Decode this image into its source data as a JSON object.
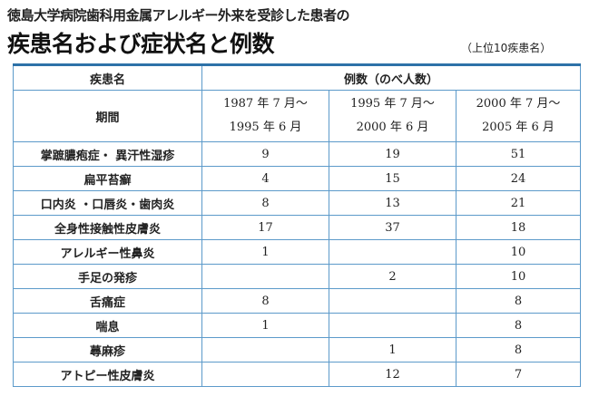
{
  "subtitle": "徳島大学病院歯科用金属アレルギー外来を受診した患者の",
  "title": "疾患名および症状名と例数",
  "note": "（上位10疾患名）",
  "table": {
    "header_disease": "疾患名",
    "header_cases": "例数（のべ人数）",
    "period_label": "期間",
    "periods": [
      {
        "line1": "1987 年 7 月～",
        "line2": "1995 年 6 月"
      },
      {
        "line1": "1995 年 7 月～",
        "line2": "2000 年 6 月"
      },
      {
        "line1": "2000 年 7 月～",
        "line2": "2005 年 6 月"
      }
    ],
    "rows": [
      {
        "name": "掌蹠膿疱症・ 異汗性湿疹",
        "v1": "9",
        "v2": "19",
        "v3": "51"
      },
      {
        "name": "扁平苔癬",
        "v1": "4",
        "v2": "15",
        "v3": "24"
      },
      {
        "name": "口内炎 ・口唇炎・歯肉炎",
        "v1": "8",
        "v2": "13",
        "v3": "21"
      },
      {
        "name": "全身性接触性皮膚炎",
        "v1": "17",
        "v2": "37",
        "v3": "18"
      },
      {
        "name": "アレルギー性鼻炎",
        "v1": "1",
        "v2": "",
        "v3": "10"
      },
      {
        "name": "手足の発疹",
        "v1": "",
        "v2": "2",
        "v3": "10"
      },
      {
        "name": "舌痛症",
        "v1": "8",
        "v2": "",
        "v3": "8"
      },
      {
        "name": "喘息",
        "v1": "1",
        "v2": "",
        "v3": "8"
      },
      {
        "name": "蕁麻疹",
        "v1": "",
        "v2": "1",
        "v3": "8"
      },
      {
        "name": "アトピー性皮膚炎",
        "v1": "",
        "v2": "12",
        "v3": "7"
      }
    ]
  }
}
